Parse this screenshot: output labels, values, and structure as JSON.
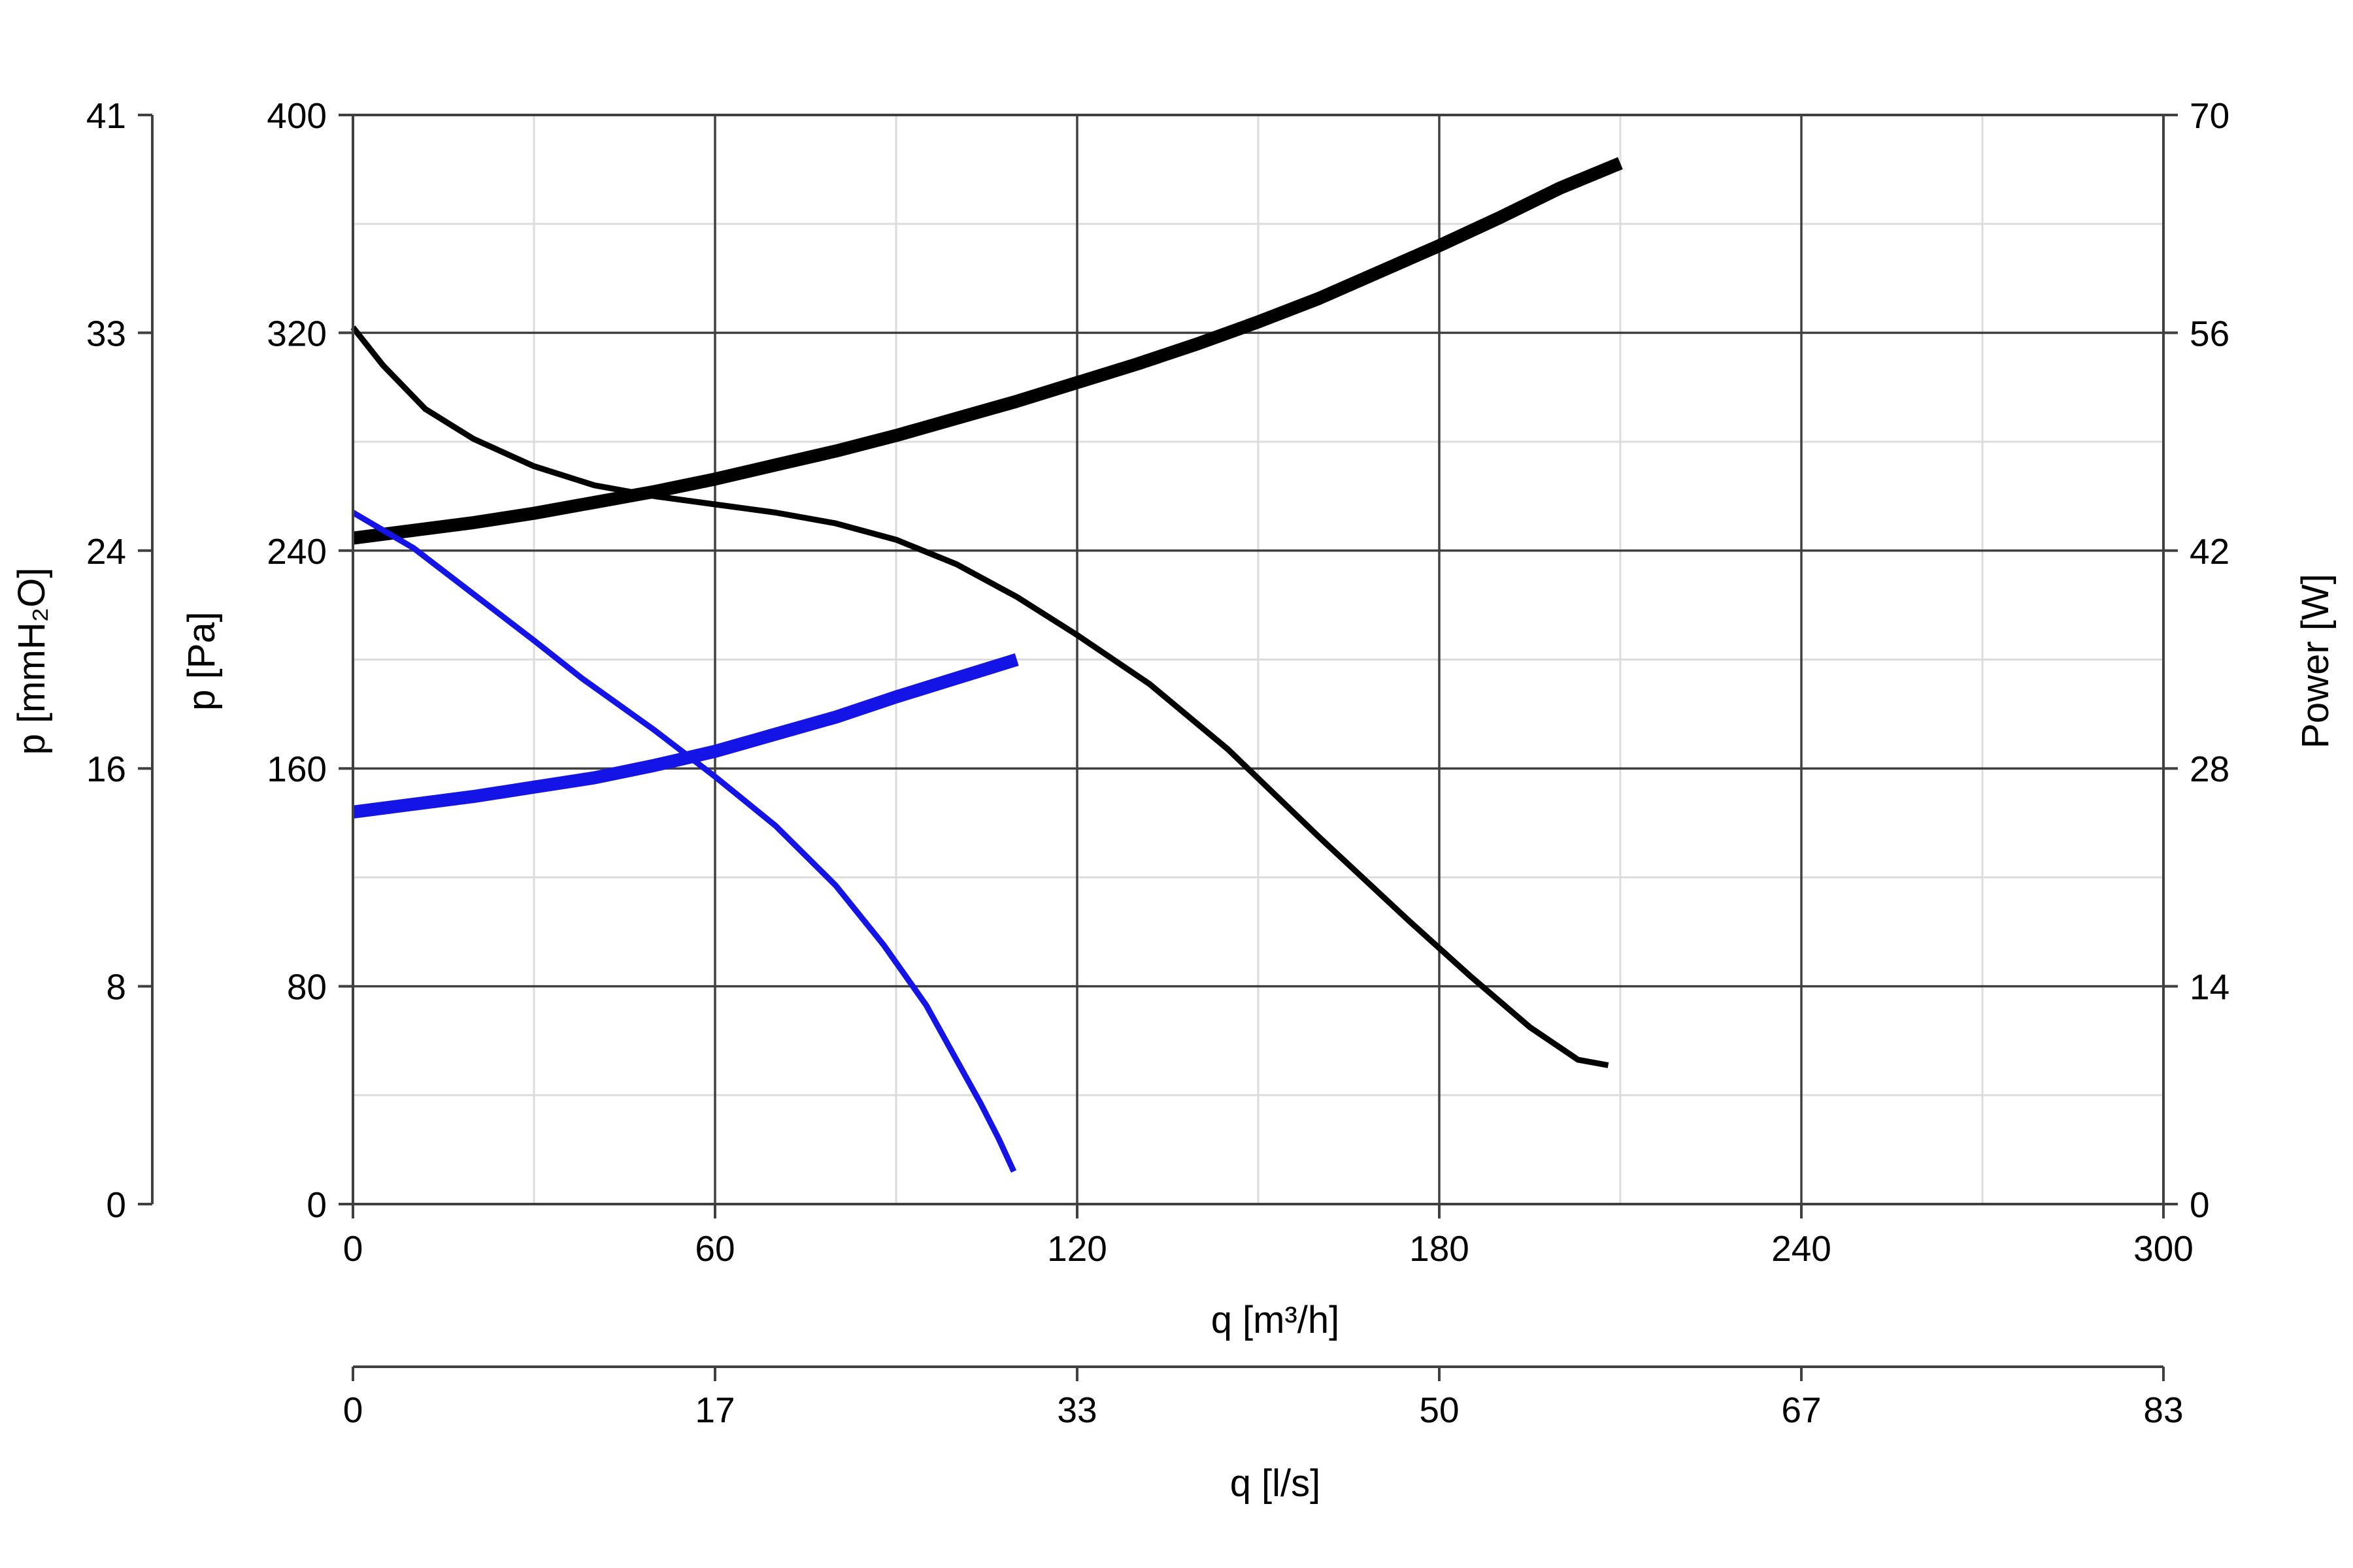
{
  "chart_data": {
    "type": "line",
    "x_axis": {
      "label": "q [m³/h]",
      "range": [
        0,
        300
      ],
      "ticks": [
        0,
        60,
        120,
        180,
        240,
        300
      ],
      "tick_labels": [
        "0",
        "60",
        "120",
        "180",
        "240",
        "300"
      ],
      "minor_step": 30
    },
    "x2_axis": {
      "label": "q [l/s]",
      "tick_labels": [
        "0",
        "17",
        "33",
        "50",
        "67",
        "83"
      ]
    },
    "y_axis": {
      "label": "p [Pa]",
      "range": [
        0,
        400
      ],
      "ticks": [
        0,
        80,
        160,
        240,
        320,
        400
      ],
      "tick_labels": [
        "0",
        "80",
        "160",
        "240",
        "320",
        "400"
      ],
      "minor_step": 40
    },
    "y2_axis": {
      "label": "p [mmH₂O]",
      "tick_labels": [
        "0",
        "8",
        "16",
        "24",
        "33",
        "41"
      ]
    },
    "y3_axis": {
      "label": "Power [W]",
      "range": [
        0,
        70
      ],
      "tick_labels": [
        "0",
        "14",
        "28",
        "42",
        "56",
        "70"
      ]
    },
    "grid": true,
    "series": [
      {
        "kind": "pressure",
        "axis": "p",
        "color": "#000000",
        "x": [
          0,
          5,
          12,
          20,
          30,
          40,
          50,
          60,
          70,
          80,
          90,
          100,
          110,
          120,
          132,
          145,
          160,
          175,
          185,
          195,
          203,
          208
        ],
        "y": [
          322,
          308,
          292,
          281,
          271,
          264,
          260,
          257,
          254,
          250,
          244,
          235,
          223,
          209,
          191,
          167,
          135,
          104,
          84,
          65,
          53,
          51
        ]
      },
      {
        "kind": "power",
        "axis": "power",
        "color": "#000000",
        "x": [
          0,
          10,
          20,
          30,
          40,
          50,
          60,
          70,
          80,
          90,
          100,
          110,
          120,
          130,
          140,
          150,
          160,
          170,
          180,
          190,
          200,
          210
        ],
        "y": [
          42.8,
          43.3,
          43.8,
          44.4,
          45.1,
          45.8,
          46.6,
          47.5,
          48.4,
          49.4,
          50.5,
          51.6,
          52.8,
          54.0,
          55.3,
          56.7,
          58.2,
          59.9,
          61.6,
          63.4,
          65.3,
          66.9
        ]
      },
      {
        "kind": "pressure",
        "axis": "p",
        "color": "#1414e6",
        "x": [
          0,
          10,
          20,
          30,
          38,
          50,
          60,
          70,
          80,
          88,
          95,
          100,
          104,
          107,
          109.5
        ],
        "y": [
          254,
          241,
          224,
          207,
          193,
          174,
          157,
          139,
          117,
          95,
          73,
          53,
          37,
          24,
          12
        ]
      },
      {
        "kind": "power",
        "axis": "power",
        "color": "#1414e6",
        "x": [
          0,
          10,
          20,
          30,
          40,
          50,
          60,
          70,
          80,
          90,
          100,
          110
        ],
        "y": [
          25.2,
          25.7,
          26.2,
          26.8,
          27.4,
          28.2,
          29.1,
          30.2,
          31.3,
          32.6,
          33.8,
          35.0
        ]
      }
    ]
  }
}
